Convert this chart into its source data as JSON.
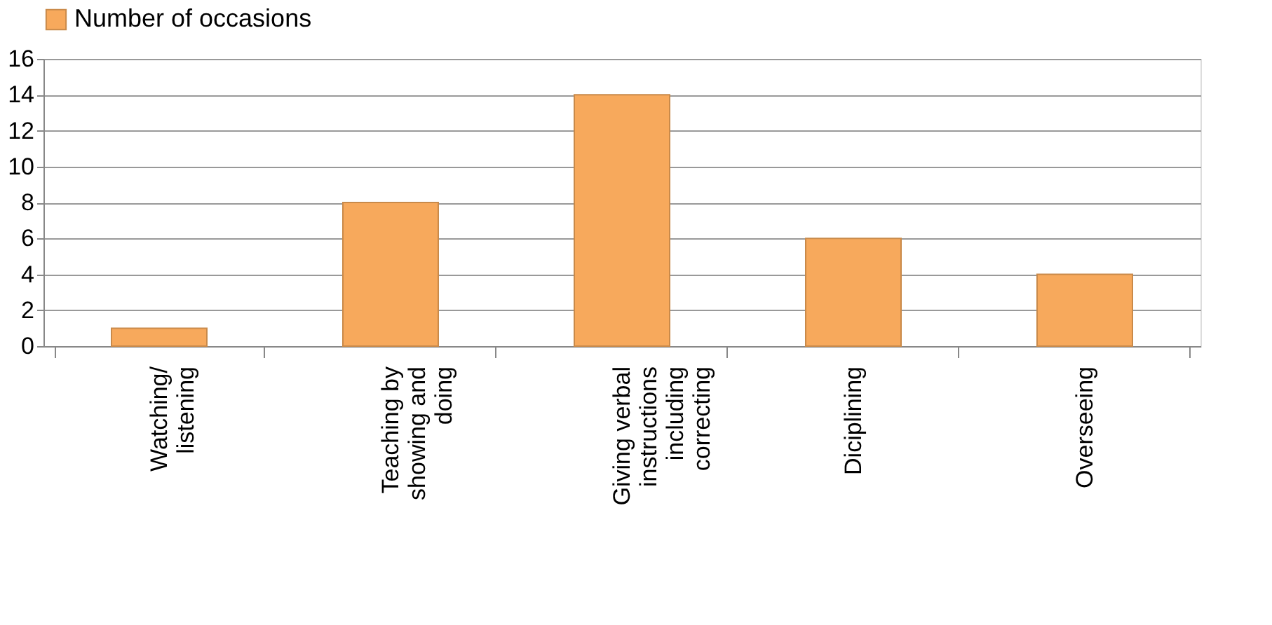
{
  "chart_data": {
    "type": "bar",
    "categories": [
      "Watching/ listening",
      "Teaching by showing and doing",
      "Giving verbal instructions including correcting",
      "Diciplining",
      "Overseeing"
    ],
    "series": [
      {
        "name": "Number of occasions",
        "color": "#f7a95c",
        "values": [
          1,
          8,
          14,
          6,
          4
        ]
      }
    ],
    "ylim": [
      0,
      16
    ],
    "yticks": [
      0,
      2,
      4,
      6,
      8,
      10,
      12,
      14,
      16
    ],
    "grid": "y",
    "legend": "top"
  }
}
